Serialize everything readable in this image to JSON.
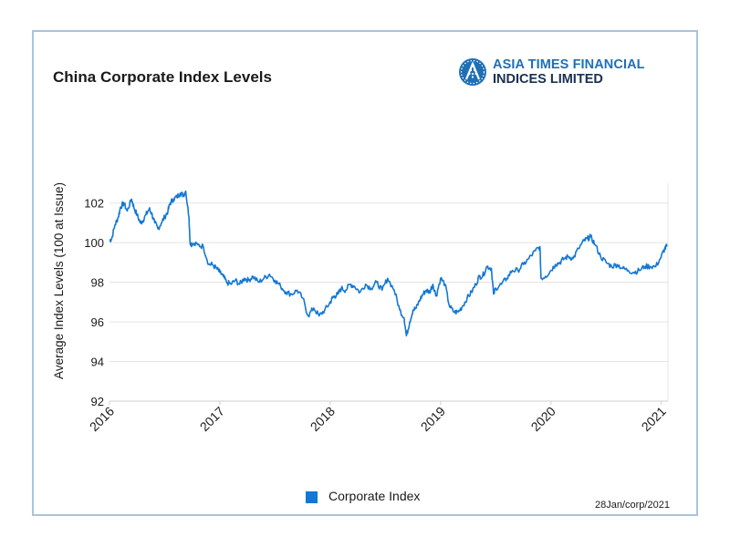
{
  "title": "China Corporate Index Levels",
  "logo": {
    "line1": "ASIA TIMES FINANCIAL",
    "line2": "INDICES LIMITED",
    "mark_icon": "globe-a-icon"
  },
  "footnote": "28Jan/corp/2021",
  "colors": {
    "series": "#1377d3",
    "frame": "#a9c3da",
    "grid": "#e3e3e3",
    "logo_blue": "#1f6fb5",
    "logo_dark": "#1a3050"
  },
  "chart_data": {
    "type": "line",
    "title": "China Corporate Index Levels",
    "xlabel": "",
    "ylabel": "Average Index Levels (100 at Issue)",
    "ylim": [
      92,
      103
    ],
    "yticks": [
      92,
      94,
      96,
      98,
      100,
      102
    ],
    "xlim": [
      2016,
      2021.06
    ],
    "xticks": [
      "2016",
      "2017",
      "2018",
      "2019",
      "2020",
      "2021"
    ],
    "grid": "horizontal",
    "legend_position": "bottom-center",
    "series": [
      {
        "name": "Corporate Index",
        "color": "#1377d3",
        "x": [
          2016.0,
          2016.02,
          2016.05,
          2016.08,
          2016.1,
          2016.13,
          2016.16,
          2016.2,
          2016.22,
          2016.25,
          2016.28,
          2016.3,
          2016.33,
          2016.36,
          2016.38,
          2016.41,
          2016.44,
          2016.47,
          2016.5,
          2016.53,
          2016.55,
          2016.58,
          2016.61,
          2016.64,
          2016.67,
          2016.69,
          2016.72,
          2016.73,
          2016.75,
          2016.8,
          2016.85,
          2016.9,
          2016.93,
          2016.97,
          2017.0,
          2017.03,
          2017.06,
          2017.1,
          2017.14,
          2017.18,
          2017.22,
          2017.26,
          2017.3,
          2017.35,
          2017.4,
          2017.45,
          2017.5,
          2017.55,
          2017.6,
          2017.65,
          2017.7,
          2017.75,
          2017.8,
          2017.85,
          2017.9,
          2017.95,
          2017.99,
          2018.02,
          2018.04,
          2018.07,
          2018.1,
          2018.14,
          2018.18,
          2018.22,
          2018.27,
          2018.32,
          2018.37,
          2018.42,
          2018.47,
          2018.52,
          2018.58,
          2018.63,
          2018.67,
          2018.69,
          2018.72,
          2018.75,
          2018.78,
          2018.81,
          2018.84,
          2018.87,
          2018.9,
          2018.93,
          2018.96,
          2019.0,
          2019.04,
          2019.08,
          2019.12,
          2019.16,
          2019.2,
          2019.24,
          2019.28,
          2019.32,
          2019.35,
          2019.38,
          2019.42,
          2019.46,
          2019.48,
          2019.5,
          2019.55,
          2019.6,
          2019.65,
          2019.7,
          2019.75,
          2019.8,
          2019.86,
          2019.9,
          2019.91,
          2019.95,
          2020.0,
          2020.04,
          2020.08,
          2020.12,
          2020.16,
          2020.2,
          2020.25,
          2020.3,
          2020.33,
          2020.36,
          2020.4,
          2020.45,
          2020.5,
          2020.55,
          2020.6,
          2020.65,
          2020.7,
          2020.75,
          2020.8,
          2020.85,
          2020.9,
          2020.95,
          2021.0,
          2021.03,
          2021.05
        ],
        "y": [
          100.1,
          100.2,
          100.9,
          101.3,
          101.8,
          102.0,
          101.6,
          102.2,
          101.8,
          101.4,
          101.0,
          101.1,
          101.4,
          101.7,
          101.5,
          101.0,
          100.7,
          101.0,
          101.3,
          101.6,
          102.0,
          102.2,
          102.3,
          102.5,
          102.4,
          102.6,
          101.3,
          100.0,
          99.9,
          99.9,
          99.8,
          98.9,
          98.9,
          98.7,
          98.5,
          98.3,
          98.0,
          97.9,
          98.1,
          97.9,
          98.2,
          98.1,
          98.3,
          98.0,
          98.2,
          98.4,
          98.1,
          97.8,
          97.5,
          97.4,
          97.6,
          97.2,
          96.3,
          96.7,
          96.3,
          96.6,
          96.9,
          97.2,
          97.3,
          97.4,
          97.7,
          97.6,
          97.9,
          97.8,
          97.5,
          97.9,
          97.7,
          98.0,
          97.6,
          98.2,
          97.6,
          96.6,
          96.2,
          95.3,
          96.0,
          96.6,
          96.7,
          97.1,
          97.4,
          97.6,
          97.5,
          97.9,
          97.3,
          98.2,
          97.9,
          96.8,
          96.5,
          96.5,
          96.8,
          97.2,
          97.5,
          97.9,
          98.3,
          98.3,
          98.8,
          98.7,
          97.4,
          97.7,
          97.9,
          98.2,
          98.6,
          98.6,
          98.9,
          99.2,
          99.6,
          99.8,
          98.2,
          98.3,
          98.6,
          98.9,
          99.0,
          99.2,
          99.3,
          99.2,
          99.7,
          100.1,
          100.2,
          100.3,
          99.9,
          99.3,
          99.0,
          98.8,
          98.9,
          98.7,
          98.6,
          98.5,
          98.6,
          98.8,
          98.8,
          98.8,
          99.3,
          99.7,
          99.8
        ]
      }
    ]
  }
}
